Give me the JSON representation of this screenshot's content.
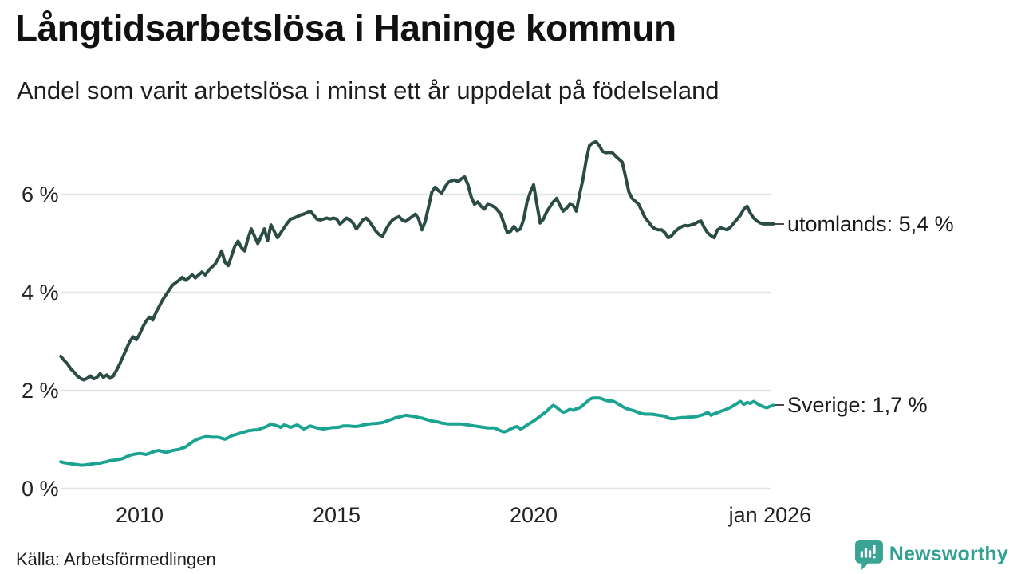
{
  "header": {
    "title": "Långtidsarbetslösa i Haninge kommun",
    "subtitle": "Andel som varit arbetslösa i minst ett år uppdelat på födelseland"
  },
  "footer": {
    "source": "Källa: Arbetsförmedlingen",
    "brand": "Newsworthy"
  },
  "colors": {
    "series_utomlands": "#2b4c45",
    "series_sverige": "#1ba392",
    "gridline": "#e4e4e7",
    "axis_text": "#222222",
    "label_dash": "#4a4a4a",
    "brand_teal": "#3aa494"
  },
  "chart_data": {
    "type": "line",
    "title": "Långtidsarbetslösa i Haninge kommun",
    "subtitle": "Andel som varit arbetslösa i minst ett år uppdelat på födelseland",
    "x_unit": "month",
    "x_start_year": 2008.0,
    "x_step_years": 0.0833333,
    "x_tick_years": [
      2010,
      2015,
      2020,
      2026
    ],
    "x_tick_labels": [
      "2010",
      "2015",
      "2020",
      "jan 2026"
    ],
    "y_ticks": [
      0,
      2,
      4,
      6
    ],
    "y_tick_labels": [
      "0 %",
      "2 %",
      "4 %",
      "6 %"
    ],
    "ylim": [
      0,
      7.4
    ],
    "grid": true,
    "legend_position": "end-of-line-labels",
    "series": [
      {
        "name": "utomlands",
        "end_label": "utomlands: 5,4 %",
        "final_value": 5.4,
        "color": "#2b4c45",
        "values": [
          2.7,
          2.62,
          2.55,
          2.45,
          2.38,
          2.3,
          2.25,
          2.22,
          2.25,
          2.3,
          2.24,
          2.27,
          2.35,
          2.27,
          2.32,
          2.25,
          2.3,
          2.42,
          2.55,
          2.7,
          2.85,
          3.0,
          3.1,
          3.04,
          3.15,
          3.3,
          3.42,
          3.5,
          3.44,
          3.6,
          3.72,
          3.85,
          3.95,
          4.05,
          4.15,
          4.2,
          4.25,
          4.31,
          4.25,
          4.3,
          4.36,
          4.3,
          4.36,
          4.42,
          4.36,
          4.45,
          4.52,
          4.58,
          4.7,
          4.85,
          4.62,
          4.55,
          4.75,
          4.95,
          5.05,
          4.92,
          4.85,
          5.1,
          5.3,
          5.15,
          5.0,
          5.15,
          5.3,
          5.06,
          5.38,
          5.25,
          5.12,
          5.22,
          5.32,
          5.42,
          5.5,
          5.52,
          5.55,
          5.58,
          5.6,
          5.63,
          5.66,
          5.58,
          5.5,
          5.48,
          5.5,
          5.52,
          5.5,
          5.52,
          5.5,
          5.4,
          5.45,
          5.52,
          5.48,
          5.42,
          5.3,
          5.38,
          5.48,
          5.52,
          5.45,
          5.35,
          5.25,
          5.18,
          5.15,
          5.28,
          5.4,
          5.48,
          5.52,
          5.55,
          5.48,
          5.45,
          5.5,
          5.55,
          5.6,
          5.5,
          5.28,
          5.45,
          5.75,
          6.05,
          6.15,
          6.08,
          6.03,
          6.15,
          6.25,
          6.28,
          6.3,
          6.26,
          6.32,
          6.36,
          6.2,
          5.95,
          5.8,
          5.85,
          5.76,
          5.7,
          5.8,
          5.78,
          5.75,
          5.68,
          5.6,
          5.4,
          5.22,
          5.25,
          5.35,
          5.26,
          5.3,
          5.5,
          5.85,
          6.05,
          6.2,
          5.8,
          5.42,
          5.5,
          5.65,
          5.75,
          5.85,
          5.92,
          5.78,
          5.66,
          5.72,
          5.8,
          5.78,
          5.66,
          6.0,
          6.3,
          6.7,
          7.0,
          7.05,
          7.08,
          7.0,
          6.88,
          6.85,
          6.86,
          6.85,
          6.78,
          6.72,
          6.66,
          6.36,
          6.05,
          5.92,
          5.86,
          5.8,
          5.66,
          5.52,
          5.44,
          5.35,
          5.3,
          5.28,
          5.28,
          5.22,
          5.12,
          5.16,
          5.24,
          5.3,
          5.34,
          5.37,
          5.36,
          5.38,
          5.4,
          5.44,
          5.46,
          5.32,
          5.22,
          5.16,
          5.12,
          5.28,
          5.32,
          5.3,
          5.28,
          5.34,
          5.42,
          5.5,
          5.58,
          5.7,
          5.76,
          5.62,
          5.52,
          5.46,
          5.42,
          5.4,
          5.4,
          5.4,
          5.4
        ]
      },
      {
        "name": "Sverige",
        "end_label": "Sverige: 1,7 %",
        "final_value": 1.7,
        "color": "#1ba392",
        "values": [
          0.55,
          0.53,
          0.52,
          0.51,
          0.5,
          0.49,
          0.48,
          0.48,
          0.49,
          0.5,
          0.51,
          0.52,
          0.52,
          0.54,
          0.55,
          0.57,
          0.58,
          0.59,
          0.6,
          0.62,
          0.65,
          0.68,
          0.7,
          0.71,
          0.72,
          0.71,
          0.7,
          0.72,
          0.75,
          0.77,
          0.78,
          0.76,
          0.74,
          0.76,
          0.78,
          0.79,
          0.8,
          0.83,
          0.85,
          0.9,
          0.95,
          0.99,
          1.02,
          1.04,
          1.06,
          1.06,
          1.05,
          1.05,
          1.05,
          1.03,
          1.01,
          1.04,
          1.08,
          1.1,
          1.12,
          1.14,
          1.16,
          1.18,
          1.19,
          1.2,
          1.2,
          1.23,
          1.25,
          1.28,
          1.32,
          1.3,
          1.28,
          1.25,
          1.3,
          1.28,
          1.25,
          1.28,
          1.3,
          1.26,
          1.22,
          1.25,
          1.28,
          1.26,
          1.24,
          1.23,
          1.22,
          1.23,
          1.24,
          1.25,
          1.25,
          1.26,
          1.28,
          1.28,
          1.28,
          1.27,
          1.27,
          1.28,
          1.3,
          1.31,
          1.32,
          1.33,
          1.33,
          1.34,
          1.35,
          1.37,
          1.4,
          1.42,
          1.45,
          1.46,
          1.48,
          1.5,
          1.49,
          1.48,
          1.47,
          1.45,
          1.44,
          1.42,
          1.4,
          1.38,
          1.37,
          1.36,
          1.34,
          1.33,
          1.32,
          1.32,
          1.32,
          1.32,
          1.32,
          1.31,
          1.3,
          1.29,
          1.28,
          1.27,
          1.26,
          1.25,
          1.24,
          1.24,
          1.24,
          1.21,
          1.18,
          1.16,
          1.18,
          1.22,
          1.25,
          1.27,
          1.22,
          1.25,
          1.3,
          1.34,
          1.38,
          1.43,
          1.48,
          1.53,
          1.58,
          1.65,
          1.7,
          1.66,
          1.6,
          1.56,
          1.58,
          1.62,
          1.6,
          1.63,
          1.65,
          1.7,
          1.76,
          1.82,
          1.85,
          1.85,
          1.85,
          1.83,
          1.8,
          1.79,
          1.79,
          1.76,
          1.72,
          1.68,
          1.64,
          1.62,
          1.6,
          1.58,
          1.55,
          1.53,
          1.52,
          1.52,
          1.52,
          1.51,
          1.5,
          1.49,
          1.48,
          1.44,
          1.43,
          1.43,
          1.44,
          1.45,
          1.45,
          1.46,
          1.46,
          1.47,
          1.48,
          1.5,
          1.52,
          1.56,
          1.5,
          1.53,
          1.55,
          1.58,
          1.6,
          1.63,
          1.66,
          1.7,
          1.74,
          1.78,
          1.72,
          1.76,
          1.74,
          1.78,
          1.74,
          1.7,
          1.67,
          1.65,
          1.68,
          1.7
        ]
      }
    ]
  }
}
